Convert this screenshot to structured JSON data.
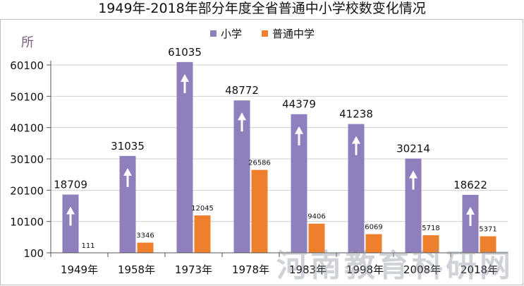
{
  "chart_data": {
    "type": "bar",
    "title": "1949年-2018年部分年度全省普通中小学校数变化情况",
    "ylabel": "所",
    "categories": [
      "1949年",
      "1958年",
      "1973年",
      "1978年",
      "1983年",
      "1998年",
      "2008年",
      "2018年"
    ],
    "series": [
      {
        "name": "小学",
        "color": "#8f7fbc",
        "values": [
          18709,
          31035,
          61035,
          48772,
          44379,
          41238,
          30214,
          18622
        ]
      },
      {
        "name": "普通中学",
        "color": "#ee7f2d",
        "values": [
          111,
          3346,
          12045,
          26586,
          9406,
          6069,
          5718,
          5371
        ]
      }
    ],
    "yticks": [
      "100",
      "10100",
      "20100",
      "30100",
      "40100",
      "50100",
      "60100"
    ],
    "ylim": [
      100,
      63000
    ],
    "grid": true,
    "legend": "top"
  },
  "watermark": "河南教育科研网"
}
